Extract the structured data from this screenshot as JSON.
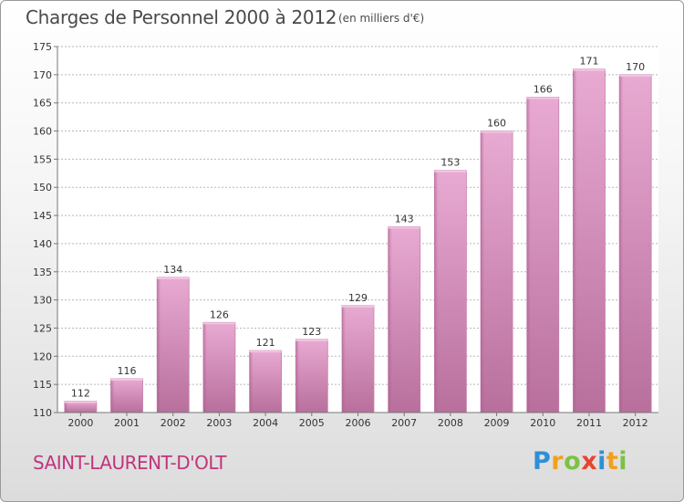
{
  "chart_data": {
    "type": "bar",
    "title": "Charges de Personnel 2000 à 2012",
    "subtitle": "(en milliers d'€)",
    "categories": [
      "2000",
      "2001",
      "2002",
      "2003",
      "2004",
      "2005",
      "2006",
      "2007",
      "2008",
      "2009",
      "2010",
      "2011",
      "2012"
    ],
    "values": [
      112,
      116,
      134,
      126,
      121,
      123,
      129,
      143,
      153,
      160,
      166,
      171,
      170
    ],
    "ylim": [
      110,
      175
    ],
    "yticks": [
      110,
      115,
      120,
      125,
      130,
      135,
      140,
      145,
      150,
      155,
      160,
      165,
      170,
      175
    ],
    "xlabel": "",
    "ylabel": "",
    "grid": true,
    "bar_color": "#d98fbc"
  },
  "commune": "SAINT-LAURENT-D'OLT",
  "logo": {
    "letters": [
      "P",
      "r",
      "o",
      "x",
      "i",
      "t",
      "i"
    ],
    "colors": [
      "#2f8fd6",
      "#f0a020",
      "#7cc242",
      "#e8442e",
      "#2f8fd6",
      "#f0a020",
      "#7cc242"
    ]
  }
}
